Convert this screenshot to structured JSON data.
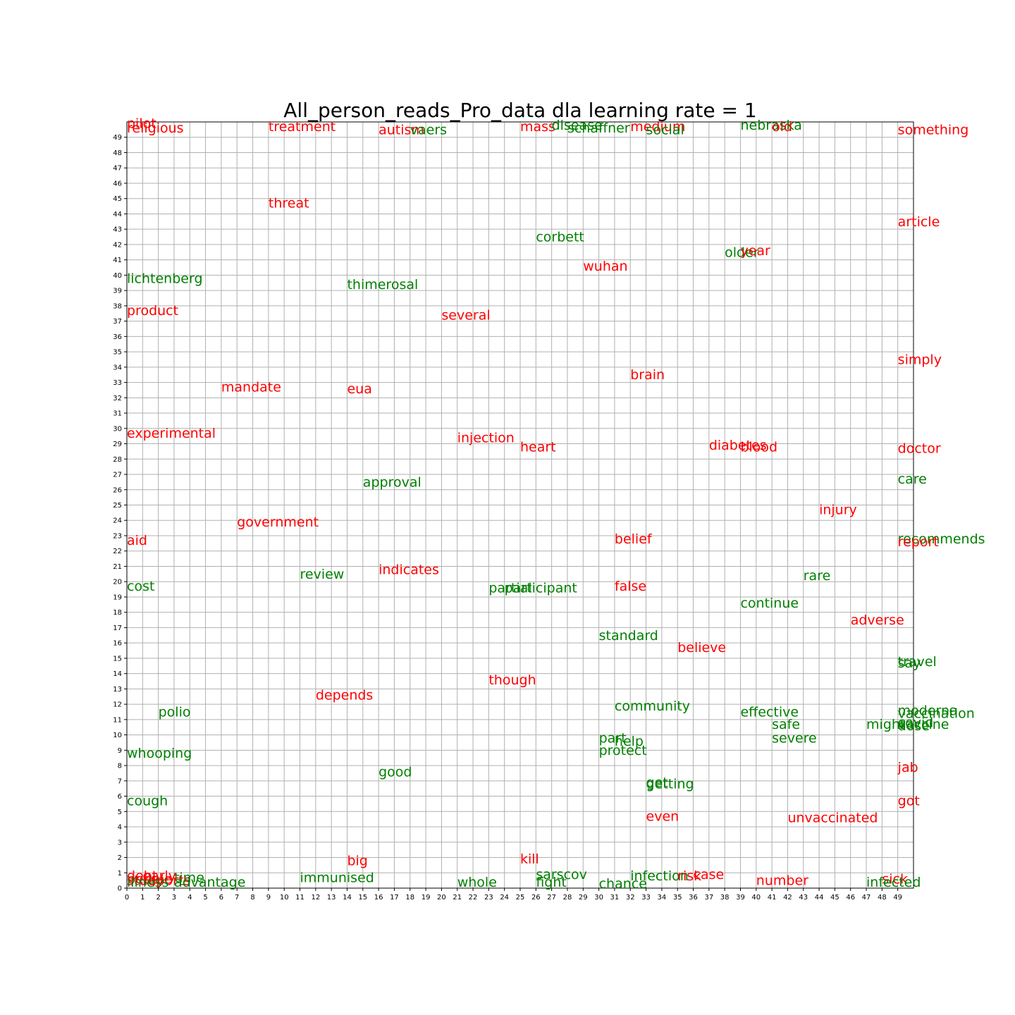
{
  "chart_data": {
    "type": "scatter",
    "title": "All_person_reads_Pro_data dla learning rate = 1",
    "xlabel": "",
    "ylabel": "",
    "xlim": [
      0,
      50
    ],
    "ylim": [
      0,
      50
    ],
    "grid": true,
    "x_ticks": [
      0,
      1,
      2,
      3,
      4,
      5,
      6,
      7,
      8,
      9,
      10,
      11,
      12,
      13,
      14,
      15,
      16,
      17,
      18,
      19,
      20,
      21,
      22,
      23,
      24,
      25,
      26,
      27,
      28,
      29,
      30,
      31,
      32,
      33,
      34,
      35,
      36,
      37,
      38,
      39,
      40,
      41,
      42,
      43,
      44,
      45,
      46,
      47,
      48,
      49
    ],
    "y_ticks": [
      0,
      1,
      2,
      3,
      4,
      5,
      6,
      7,
      8,
      9,
      10,
      11,
      12,
      13,
      14,
      15,
      16,
      17,
      18,
      19,
      20,
      21,
      22,
      23,
      24,
      25,
      26,
      27,
      28,
      29,
      30,
      31,
      32,
      33,
      34,
      35,
      36,
      37,
      38,
      39,
      40,
      41,
      42,
      43,
      44,
      45,
      46,
      47,
      48,
      49
    ],
    "colors": {
      "red": "#ff0000",
      "green": "#008000"
    },
    "points": [
      {
        "word": "pilot",
        "x": 0,
        "y": 49.6,
        "color": "red"
      },
      {
        "word": "religious",
        "x": 0,
        "y": 49.3,
        "color": "red"
      },
      {
        "word": "treatment",
        "x": 9,
        "y": 49.4,
        "color": "red"
      },
      {
        "word": "autism",
        "x": 16,
        "y": 49.2,
        "color": "red"
      },
      {
        "word": "vaers",
        "x": 18,
        "y": 49.2,
        "color": "green"
      },
      {
        "word": "mass",
        "x": 25,
        "y": 49.4,
        "color": "red"
      },
      {
        "word": "disease",
        "x": 27,
        "y": 49.5,
        "color": "green"
      },
      {
        "word": "schaffner",
        "x": 28,
        "y": 49.3,
        "color": "green"
      },
      {
        "word": "medium",
        "x": 32,
        "y": 49.4,
        "color": "red"
      },
      {
        "word": "social",
        "x": 33,
        "y": 49.2,
        "color": "green"
      },
      {
        "word": "nebraska",
        "x": 39,
        "y": 49.5,
        "color": "green"
      },
      {
        "word": "old",
        "x": 41,
        "y": 49.4,
        "color": "red"
      },
      {
        "word": "something",
        "x": 49,
        "y": 49.2,
        "color": "red"
      },
      {
        "word": "threat",
        "x": 9,
        "y": 44.4,
        "color": "red"
      },
      {
        "word": "article",
        "x": 49,
        "y": 43.2,
        "color": "red"
      },
      {
        "word": "corbett",
        "x": 26,
        "y": 42.2,
        "color": "green"
      },
      {
        "word": "older",
        "x": 38,
        "y": 41.2,
        "color": "green"
      },
      {
        "word": "year",
        "x": 39,
        "y": 41.3,
        "color": "red"
      },
      {
        "word": "wuhan",
        "x": 29,
        "y": 40.3,
        "color": "red"
      },
      {
        "word": "lichtenberg",
        "x": 0,
        "y": 39.5,
        "color": "green"
      },
      {
        "word": "thimerosal",
        "x": 14,
        "y": 39.1,
        "color": "green"
      },
      {
        "word": "product",
        "x": 0,
        "y": 37.4,
        "color": "red"
      },
      {
        "word": "several",
        "x": 20,
        "y": 37.1,
        "color": "red"
      },
      {
        "word": "simply",
        "x": 49,
        "y": 34.2,
        "color": "red"
      },
      {
        "word": "brain",
        "x": 32,
        "y": 33.2,
        "color": "red"
      },
      {
        "word": "mandate",
        "x": 6,
        "y": 32.4,
        "color": "red"
      },
      {
        "word": "eua",
        "x": 14,
        "y": 32.3,
        "color": "red"
      },
      {
        "word": "experimental",
        "x": 0,
        "y": 29.4,
        "color": "red"
      },
      {
        "word": "injection",
        "x": 21,
        "y": 29.1,
        "color": "red"
      },
      {
        "word": "heart",
        "x": 25,
        "y": 28.5,
        "color": "red"
      },
      {
        "word": "diabetes",
        "x": 37,
        "y": 28.6,
        "color": "red"
      },
      {
        "word": "blood",
        "x": 39,
        "y": 28.5,
        "color": "red"
      },
      {
        "word": "doctor",
        "x": 49,
        "y": 28.4,
        "color": "red"
      },
      {
        "word": "approval",
        "x": 15,
        "y": 26.2,
        "color": "green"
      },
      {
        "word": "care",
        "x": 49,
        "y": 26.4,
        "color": "green"
      },
      {
        "word": "injury",
        "x": 44,
        "y": 24.4,
        "color": "red"
      },
      {
        "word": "government",
        "x": 7,
        "y": 23.6,
        "color": "red"
      },
      {
        "word": "aid",
        "x": 0,
        "y": 22.4,
        "color": "red"
      },
      {
        "word": "belief",
        "x": 31,
        "y": 22.5,
        "color": "red"
      },
      {
        "word": "recommends",
        "x": 49,
        "y": 22.5,
        "color": "green"
      },
      {
        "word": "report",
        "x": 49,
        "y": 22.3,
        "color": "red"
      },
      {
        "word": "indicates",
        "x": 16,
        "y": 20.5,
        "color": "red"
      },
      {
        "word": "review",
        "x": 11,
        "y": 20.2,
        "color": "green"
      },
      {
        "word": "rare",
        "x": 43,
        "y": 20.1,
        "color": "green"
      },
      {
        "word": "cost",
        "x": 0,
        "y": 19.4,
        "color": "green"
      },
      {
        "word": "partial",
        "x": 23,
        "y": 19.3,
        "color": "green"
      },
      {
        "word": "participant",
        "x": 24,
        "y": 19.3,
        "color": "green"
      },
      {
        "word": "false",
        "x": 31,
        "y": 19.4,
        "color": "red"
      },
      {
        "word": "continue",
        "x": 39,
        "y": 18.3,
        "color": "green"
      },
      {
        "word": "adverse",
        "x": 46,
        "y": 17.2,
        "color": "red"
      },
      {
        "word": "standard",
        "x": 30,
        "y": 16.2,
        "color": "green"
      },
      {
        "word": "believe",
        "x": 35,
        "y": 15.4,
        "color": "red"
      },
      {
        "word": "travel",
        "x": 49,
        "y": 14.5,
        "color": "green"
      },
      {
        "word": "say",
        "x": 49,
        "y": 14.4,
        "color": "green"
      },
      {
        "word": "though",
        "x": 23,
        "y": 13.3,
        "color": "red"
      },
      {
        "word": "depends",
        "x": 12,
        "y": 12.3,
        "color": "red"
      },
      {
        "word": "community",
        "x": 31,
        "y": 11.6,
        "color": "green"
      },
      {
        "word": "polio",
        "x": 2,
        "y": 11.2,
        "color": "green"
      },
      {
        "word": "effective",
        "x": 39,
        "y": 11.2,
        "color": "green"
      },
      {
        "word": "moderna",
        "x": 49,
        "y": 11.3,
        "color": "green"
      },
      {
        "word": "vaccination",
        "x": 49,
        "y": 11.1,
        "color": "green"
      },
      {
        "word": "safe",
        "x": 41,
        "y": 10.4,
        "color": "green"
      },
      {
        "word": "might",
        "x": 47,
        "y": 10.4,
        "color": "green"
      },
      {
        "word": "covid",
        "x": 49,
        "y": 10.5,
        "color": "green"
      },
      {
        "word": "vaccine",
        "x": 49,
        "y": 10.4,
        "color": "green"
      },
      {
        "word": "dose",
        "x": 49,
        "y": 10.3,
        "color": "green"
      },
      {
        "word": "part",
        "x": 30,
        "y": 9.5,
        "color": "green"
      },
      {
        "word": "help",
        "x": 31,
        "y": 9.3,
        "color": "green"
      },
      {
        "word": "severe",
        "x": 41,
        "y": 9.5,
        "color": "green"
      },
      {
        "word": "whooping",
        "x": 0,
        "y": 8.5,
        "color": "green"
      },
      {
        "word": "protect",
        "x": 30,
        "y": 8.7,
        "color": "green"
      },
      {
        "word": "jab",
        "x": 49,
        "y": 7.6,
        "color": "red"
      },
      {
        "word": "good",
        "x": 16,
        "y": 7.3,
        "color": "green"
      },
      {
        "word": "get",
        "x": 33,
        "y": 6.6,
        "color": "green"
      },
      {
        "word": "getting",
        "x": 33,
        "y": 6.5,
        "color": "green"
      },
      {
        "word": "cough",
        "x": 0,
        "y": 5.4,
        "color": "green"
      },
      {
        "word": "got",
        "x": 49,
        "y": 5.4,
        "color": "red"
      },
      {
        "word": "even",
        "x": 33,
        "y": 4.4,
        "color": "red"
      },
      {
        "word": "unvaccinated",
        "x": 42,
        "y": 4.3,
        "color": "red"
      },
      {
        "word": "big",
        "x": 14,
        "y": 1.5,
        "color": "red"
      },
      {
        "word": "kill",
        "x": 25,
        "y": 1.6,
        "color": "red"
      },
      {
        "word": "sarscov",
        "x": 26,
        "y": 0.6,
        "color": "green"
      },
      {
        "word": "infection",
        "x": 32,
        "y": 0.5,
        "color": "green"
      },
      {
        "word": "risk",
        "x": 35,
        "y": 0.5,
        "color": "red"
      },
      {
        "word": "case",
        "x": 36,
        "y": 0.6,
        "color": "red"
      },
      {
        "word": "immunised",
        "x": 11,
        "y": 0.4,
        "color": "green"
      },
      {
        "word": "time",
        "x": 3,
        "y": 0.4,
        "color": "green"
      },
      {
        "word": "debt",
        "x": 0,
        "y": 0.5,
        "color": "red"
      },
      {
        "word": "early",
        "x": 1,
        "y": 0.5,
        "color": "red"
      },
      {
        "word": "people",
        "x": 0,
        "y": 0.3,
        "color": "red"
      },
      {
        "word": "study",
        "x": 0,
        "y": 0.2,
        "color": "red"
      },
      {
        "word": "reports",
        "x": 1,
        "y": 0.2,
        "color": "red"
      },
      {
        "word": "illness",
        "x": 0,
        "y": 0.1,
        "color": "green"
      },
      {
        "word": "advantage",
        "x": 3,
        "y": 0.1,
        "color": "green"
      },
      {
        "word": "whole",
        "x": 21,
        "y": 0.1,
        "color": "green"
      },
      {
        "word": "fight",
        "x": 26,
        "y": 0.1,
        "color": "green"
      },
      {
        "word": "chance",
        "x": 30,
        "y": 0.0,
        "color": "green"
      },
      {
        "word": "number",
        "x": 40,
        "y": 0.2,
        "color": "red"
      },
      {
        "word": "sick",
        "x": 48,
        "y": 0.3,
        "color": "red"
      },
      {
        "word": "infected",
        "x": 47,
        "y": 0.1,
        "color": "green"
      }
    ]
  }
}
